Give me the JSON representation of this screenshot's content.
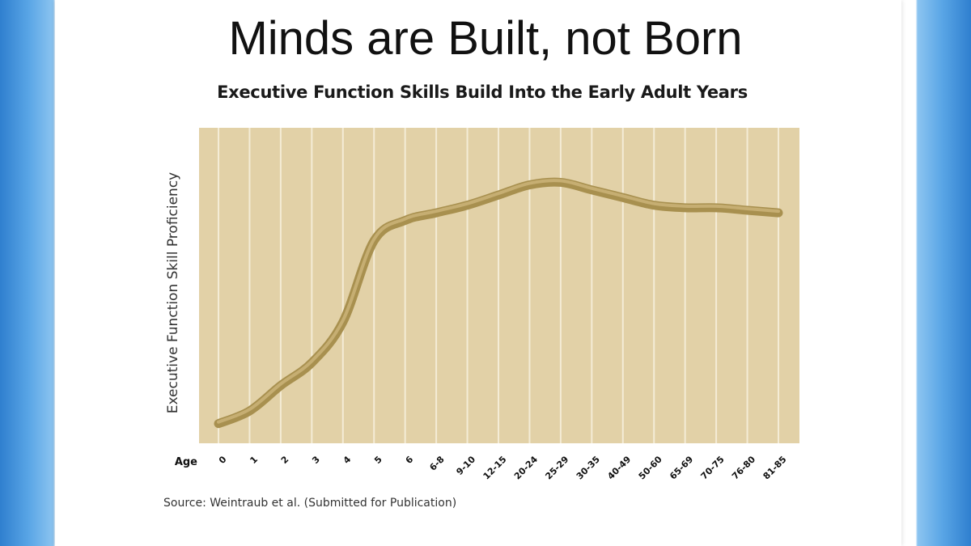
{
  "slide": {
    "title": "Minds are Built, not Born",
    "source": "Source: Weintraub et al. (Submitted for Publication)"
  },
  "chart_data": {
    "type": "line",
    "title": "Executive Function Skills Build Into the Early Adult Years",
    "xlabel": "Age",
    "ylabel": "Executive Function Skill Proficiency",
    "categories": [
      "0",
      "1",
      "2",
      "3",
      "4",
      "5",
      "6",
      "6-8",
      "9-10",
      "12-15",
      "20-24",
      "25-29",
      "30-35",
      "40-49",
      "50-60",
      "65-69",
      "70-75",
      "76-80",
      "81-85"
    ],
    "series": [
      {
        "values": [
          0.02,
          0.07,
          0.17,
          0.26,
          0.42,
          0.74,
          0.82,
          0.85,
          0.88,
          0.92,
          0.96,
          0.97,
          0.94,
          0.91,
          0.88,
          0.87,
          0.87,
          0.86,
          0.85
        ]
      }
    ],
    "ylim": [
      0,
      1
    ],
    "y_ticks_shown": false,
    "grid": "vertical",
    "colors": {
      "plot_background": "#e2d1a7",
      "grid_line": "#f4ecd6",
      "line": "#a8904f",
      "line_highlight": "#c6ae72"
    }
  }
}
